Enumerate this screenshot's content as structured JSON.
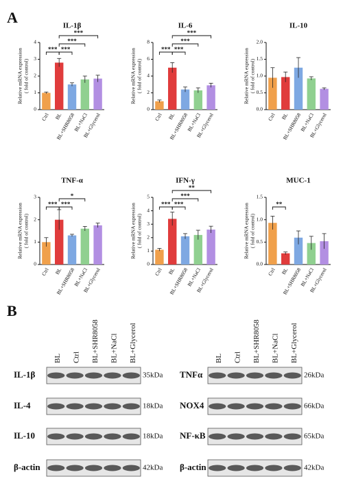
{
  "panels": {
    "a": "A",
    "b": "B"
  },
  "chart_data": [
    {
      "type": "bar",
      "title": "IL-1β",
      "ylabel": [
        "Relative mRNA expression",
        "( fold of control)"
      ],
      "categories": [
        "Ctrl",
        "BL",
        "BL+SHR8058",
        "BL+NaCl",
        "BL+Glycerol"
      ],
      "values": [
        1.0,
        2.8,
        1.5,
        1.8,
        1.85
      ],
      "errors": [
        0.05,
        0.25,
        0.1,
        0.2,
        0.2
      ],
      "colors": [
        "#f0a04b",
        "#e03c3c",
        "#7ea8e2",
        "#90d090",
        "#b28fe2"
      ],
      "ylim": [
        0,
        4
      ],
      "yticks": [
        0,
        1,
        2,
        3,
        4
      ],
      "annotations": [
        {
          "label": "***",
          "between": [
            "Ctrl",
            "BL"
          ]
        },
        {
          "label": "***",
          "between": [
            "BL",
            "BL+SHR8058"
          ]
        },
        {
          "label": "***",
          "between": [
            "BL",
            "BL+NaCl"
          ]
        },
        {
          "label": "***",
          "between": [
            "BL",
            "BL+Glycerol"
          ]
        }
      ]
    },
    {
      "type": "bar",
      "title": "IL-6",
      "ylabel": [
        "Relative mRNA expression",
        "( fold of control)"
      ],
      "categories": [
        "Ctrl",
        "BL",
        "BL+SHR8058",
        "BL+NaCl",
        "BL+Glycerol"
      ],
      "values": [
        1.0,
        5.0,
        2.4,
        2.3,
        2.9
      ],
      "errors": [
        0.15,
        0.6,
        0.3,
        0.3,
        0.25
      ],
      "colors": [
        "#f0a04b",
        "#e03c3c",
        "#7ea8e2",
        "#90d090",
        "#b28fe2"
      ],
      "ylim": [
        0,
        8
      ],
      "yticks": [
        0,
        2,
        4,
        6,
        8
      ],
      "annotations": [
        {
          "label": "***",
          "between": [
            "Ctrl",
            "BL"
          ]
        },
        {
          "label": "***",
          "between": [
            "BL",
            "BL+SHR8058"
          ]
        },
        {
          "label": "***",
          "between": [
            "BL",
            "BL+NaCl"
          ]
        },
        {
          "label": "***",
          "between": [
            "BL",
            "BL+Glycerol"
          ]
        }
      ]
    },
    {
      "type": "bar",
      "title": "IL-10",
      "ylabel": [
        "Relative mRNA expression",
        "( fold of control)"
      ],
      "categories": [
        "Ctrl",
        "BL",
        "BL+SHR8058",
        "BL+NaCl",
        "BL+Glycerol"
      ],
      "values": [
        0.95,
        0.97,
        1.25,
        0.93,
        0.62
      ],
      "errors": [
        0.3,
        0.15,
        0.3,
        0.05,
        0.03
      ],
      "colors": [
        "#f0a04b",
        "#e03c3c",
        "#7ea8e2",
        "#90d090",
        "#b28fe2"
      ],
      "ylim": [
        0,
        2
      ],
      "yticks": [
        {
          "value": 0,
          "label": "0.0"
        },
        {
          "value": 0.5,
          "label": "0.5"
        },
        {
          "value": 1,
          "label": "1.0"
        },
        {
          "value": 1.5,
          "label": "1.5"
        },
        {
          "value": 2,
          "label": "2.0"
        }
      ],
      "annotations": []
    },
    {
      "type": "bar",
      "title": "TNF-α",
      "ylabel": [
        "Relative mRNA expression",
        "( fold of control)"
      ],
      "categories": [
        "Ctrl",
        "BL",
        "BL+SHR8058",
        "BL+NaCl",
        "BL+Glycerol"
      ],
      "values": [
        1.0,
        2.0,
        1.3,
        1.6,
        1.75
      ],
      "errors": [
        0.2,
        0.45,
        0.05,
        0.1,
        0.1
      ],
      "colors": [
        "#f0a04b",
        "#e03c3c",
        "#7ea8e2",
        "#90d090",
        "#b28fe2"
      ],
      "ylim": [
        0,
        3
      ],
      "yticks": [
        0,
        1,
        2,
        3
      ],
      "annotations": [
        {
          "label": "***",
          "between": [
            "Ctrl",
            "BL"
          ]
        },
        {
          "label": "***",
          "between": [
            "BL",
            "BL+SHR8058"
          ]
        },
        {
          "label": "*",
          "between": [
            "BL",
            "BL+NaCl"
          ]
        }
      ]
    },
    {
      "type": "bar",
      "title": "IFN-γ",
      "ylabel": [
        "Relative mRNA expression",
        "( fold of control)"
      ],
      "categories": [
        "Ctrl",
        "BL",
        "BL+SHR8058",
        "BL+NaCl",
        "BL+Glycerol"
      ],
      "values": [
        1.1,
        3.4,
        2.1,
        2.2,
        2.6
      ],
      "errors": [
        0.1,
        0.5,
        0.2,
        0.35,
        0.25
      ],
      "colors": [
        "#f0a04b",
        "#e03c3c",
        "#7ea8e2",
        "#90d090",
        "#b28fe2"
      ],
      "ylim": [
        0,
        5
      ],
      "yticks": [
        0,
        1,
        2,
        3,
        4,
        5
      ],
      "annotations": [
        {
          "label": "***",
          "between": [
            "Ctrl",
            "BL"
          ]
        },
        {
          "label": "***",
          "between": [
            "BL",
            "BL+SHR8058"
          ]
        },
        {
          "label": "***",
          "between": [
            "BL",
            "BL+NaCl"
          ]
        },
        {
          "label": "**",
          "between": [
            "BL",
            "BL+Glycerol"
          ]
        }
      ]
    },
    {
      "type": "bar",
      "title": "MUC-1",
      "ylabel": [
        "Relative mRNA expression",
        "( fold of control)"
      ],
      "categories": [
        "Ctrl",
        "BL",
        "BL+SHR8058",
        "BL+NaCl",
        "BL+Glycerol"
      ],
      "values": [
        0.93,
        0.25,
        0.6,
        0.48,
        0.52
      ],
      "errors": [
        0.15,
        0.03,
        0.15,
        0.15,
        0.17
      ],
      "colors": [
        "#f0a04b",
        "#e03c3c",
        "#7ea8e2",
        "#90d090",
        "#b28fe2"
      ],
      "ylim": [
        0,
        1.5
      ],
      "yticks": [
        {
          "value": 0,
          "label": "0.0"
        },
        {
          "value": 0.5,
          "label": "0.5"
        },
        {
          "value": 1,
          "label": "1.0"
        },
        {
          "value": 1.5,
          "label": "1.5"
        }
      ],
      "annotations": [
        {
          "label": "**",
          "between": [
            "Ctrl",
            "BL"
          ]
        }
      ]
    }
  ],
  "blots": [
    {
      "lanes": [
        "BL",
        "Ctrl",
        "BL+SHR8058",
        "BL+NaCl",
        "BL+Glycerol"
      ],
      "rows": [
        {
          "protein": "IL-1β",
          "size": "35kDa"
        },
        {
          "protein": "IL-4",
          "size": "18kDa"
        },
        {
          "protein": "IL-10",
          "size": "18kDa"
        },
        {
          "protein": "β-actin",
          "size": "42kDa"
        }
      ]
    },
    {
      "lanes": [
        "BL",
        "Ctrl",
        "BL+SHR8058",
        "BL+NaCl",
        "BL+Glycerol"
      ],
      "rows": [
        {
          "protein": "TNFα",
          "size": "26kDa"
        },
        {
          "protein": "NOX4",
          "size": "66kDa"
        },
        {
          "protein": "NF-κB",
          "size": "65kDa"
        },
        {
          "protein": "β-actin",
          "size": "42kDa"
        }
      ]
    }
  ]
}
